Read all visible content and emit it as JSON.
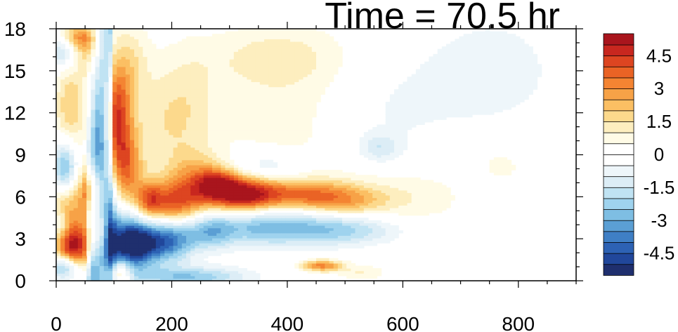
{
  "chart_data": {
    "type": "heatmap",
    "title": "Time = 70.5 hr",
    "xlabel": "",
    "ylabel": "",
    "xlim": [
      0,
      900
    ],
    "ylim": [
      0,
      18
    ],
    "x_ticks": [
      {
        "value": 0,
        "label": "0"
      },
      {
        "value": 200,
        "label": "200"
      },
      {
        "value": 400,
        "label": "400"
      },
      {
        "value": 600,
        "label": "600"
      },
      {
        "value": 800,
        "label": "800"
      }
    ],
    "y_ticks": [
      {
        "value": 0,
        "label": "0"
      },
      {
        "value": 3,
        "label": "3"
      },
      {
        "value": 6,
        "label": "6"
      },
      {
        "value": 9,
        "label": "9"
      },
      {
        "value": 12,
        "label": "12"
      },
      {
        "value": 15,
        "label": "15"
      },
      {
        "value": 18,
        "label": "18"
      }
    ],
    "colorbar": {
      "levels": [
        -5.5,
        -5,
        -4.5,
        -4,
        -3.5,
        -3,
        -2.5,
        -2,
        -1.5,
        -1,
        -0.5,
        0,
        0.5,
        1,
        1.5,
        2,
        2.5,
        3,
        3.5,
        4,
        4.5,
        5,
        5.5
      ],
      "colors": [
        "#1f2f6e",
        "#21479b",
        "#2d62b4",
        "#3f7fc5",
        "#5b9fd4",
        "#7ebee3",
        "#9fd3ee",
        "#c0e3f3",
        "#dcedf6",
        "#eef6fa",
        "#ffffff",
        "#ffffff",
        "#fffbe6",
        "#fdeebf",
        "#fcd98c",
        "#fbbf63",
        "#f7a247",
        "#f48432",
        "#ea6325",
        "#dd4521",
        "#c8271f",
        "#a9151d"
      ],
      "label_values": [
        4.5,
        3,
        1.5,
        0,
        -1.5,
        -3,
        -4.5
      ],
      "labels": [
        "4.5",
        "3",
        "1.5",
        "0",
        "-1.5",
        "-3",
        "-4.5"
      ]
    },
    "features": [
      {
        "x": 30,
        "y": 2.5,
        "sx": 22,
        "sy": 1.2,
        "v": 5.2
      },
      {
        "x": 15,
        "y": 1.0,
        "sx": 18,
        "sy": 0.6,
        "v": -3.5
      },
      {
        "x": 20,
        "y": 5.5,
        "sx": 22,
        "sy": 1.3,
        "v": 2.5
      },
      {
        "x": 15,
        "y": 8.0,
        "sx": 14,
        "sy": 1.4,
        "v": -3.0
      },
      {
        "x": 10,
        "y": 4.0,
        "sx": 10,
        "sy": 0.8,
        "v": -1.5
      },
      {
        "x": 25,
        "y": 12.5,
        "sx": 20,
        "sy": 2.2,
        "v": 2.0
      },
      {
        "x": 10,
        "y": 16.5,
        "sx": 16,
        "sy": 0.9,
        "v": -2.0
      },
      {
        "x": 35,
        "y": 17.5,
        "sx": 24,
        "sy": 0.7,
        "v": 2.5
      },
      {
        "x": 55,
        "y": 16.5,
        "sx": 14,
        "sy": 1.2,
        "v": 1.5
      },
      {
        "x": 75,
        "y": 10.5,
        "sx": 10,
        "sy": 2.5,
        "v": -1.5
      },
      {
        "x": 60,
        "y": 6.5,
        "sx": 14,
        "sy": 1.3,
        "v": 3.0
      },
      {
        "x": 75,
        "y": 3.5,
        "sx": 14,
        "sy": 1.2,
        "v": 2.5
      },
      {
        "x": 95,
        "y": 3.0,
        "sx": 8,
        "sy": 3.5,
        "v": -2.5
      },
      {
        "x": 105,
        "y": 11.5,
        "sx": 18,
        "sy": 2.8,
        "v": 4.2
      },
      {
        "x": 125,
        "y": 8.0,
        "sx": 18,
        "sy": 1.8,
        "v": 2.5
      },
      {
        "x": 130,
        "y": 15.5,
        "sx": 22,
        "sy": 2.2,
        "v": 1.2
      },
      {
        "x": 120,
        "y": 2.8,
        "sx": 28,
        "sy": 1.5,
        "v": -4.8
      },
      {
        "x": 150,
        "y": 2.6,
        "sx": 24,
        "sy": 1.0,
        "v": -2.5
      },
      {
        "x": 110,
        "y": 0.6,
        "sx": 14,
        "sy": 0.6,
        "v": 3.0
      },
      {
        "x": 160,
        "y": 5.8,
        "sx": 16,
        "sy": 0.9,
        "v": 2.5
      },
      {
        "x": 200,
        "y": 5.5,
        "sx": 35,
        "sy": 1.2,
        "v": 3.5
      },
      {
        "x": 195,
        "y": 3.0,
        "sx": 30,
        "sy": 1.1,
        "v": -4.0
      },
      {
        "x": 175,
        "y": 11.0,
        "sx": 35,
        "sy": 3.0,
        "v": 1.0
      },
      {
        "x": 240,
        "y": 7.2,
        "sx": 30,
        "sy": 1.4,
        "v": 2.0
      },
      {
        "x": 230,
        "y": 12.5,
        "sx": 35,
        "sy": 3.0,
        "v": 1.0
      },
      {
        "x": 280,
        "y": 7.0,
        "sx": 25,
        "sy": 0.8,
        "v": 3.0
      },
      {
        "x": 265,
        "y": 3.6,
        "sx": 30,
        "sy": 0.9,
        "v": -2.5
      },
      {
        "x": 230,
        "y": 0.3,
        "sx": 70,
        "sy": 0.5,
        "v": -2.5
      },
      {
        "x": 320,
        "y": 6.2,
        "sx": 40,
        "sy": 1.0,
        "v": 4.2
      },
      {
        "x": 420,
        "y": 6.2,
        "sx": 80,
        "sy": 0.8,
        "v": 3.2
      },
      {
        "x": 500,
        "y": 5.5,
        "sx": 50,
        "sy": 0.7,
        "v": 1.5
      },
      {
        "x": 360,
        "y": 8.0,
        "sx": 45,
        "sy": 0.8,
        "v": -1.5
      },
      {
        "x": 340,
        "y": 4.0,
        "sx": 50,
        "sy": 1.0,
        "v": -2.0
      },
      {
        "x": 440,
        "y": 3.8,
        "sx": 70,
        "sy": 0.9,
        "v": -2.3
      },
      {
        "x": 530,
        "y": 3.6,
        "sx": 60,
        "sy": 0.7,
        "v": -1.0
      },
      {
        "x": 460,
        "y": 1.1,
        "sx": 25,
        "sy": 0.3,
        "v": 3.2
      },
      {
        "x": 530,
        "y": 0.6,
        "sx": 30,
        "sy": 0.4,
        "v": 1.0
      },
      {
        "x": 420,
        "y": 12.0,
        "sx": 120,
        "sy": 4.0,
        "v": 0.8
      },
      {
        "x": 380,
        "y": 16.0,
        "sx": 80,
        "sy": 1.5,
        "v": 1.0
      },
      {
        "x": 560,
        "y": 9.5,
        "sx": 25,
        "sy": 0.7,
        "v": -1.3
      },
      {
        "x": 560,
        "y": 12.0,
        "sx": 80,
        "sy": 3.0,
        "v": -0.8
      },
      {
        "x": 620,
        "y": 6.0,
        "sx": 70,
        "sy": 1.5,
        "v": 0.8
      },
      {
        "x": 750,
        "y": 15.0,
        "sx": 90,
        "sy": 3.0,
        "v": -0.8
      },
      {
        "x": 770,
        "y": 8.2,
        "sx": 20,
        "sy": 0.6,
        "v": 1.0
      }
    ],
    "filament": {
      "x0": 60,
      "y0": 0.0,
      "x1": 92,
      "y1": 15.5,
      "v": -3.0
    }
  }
}
